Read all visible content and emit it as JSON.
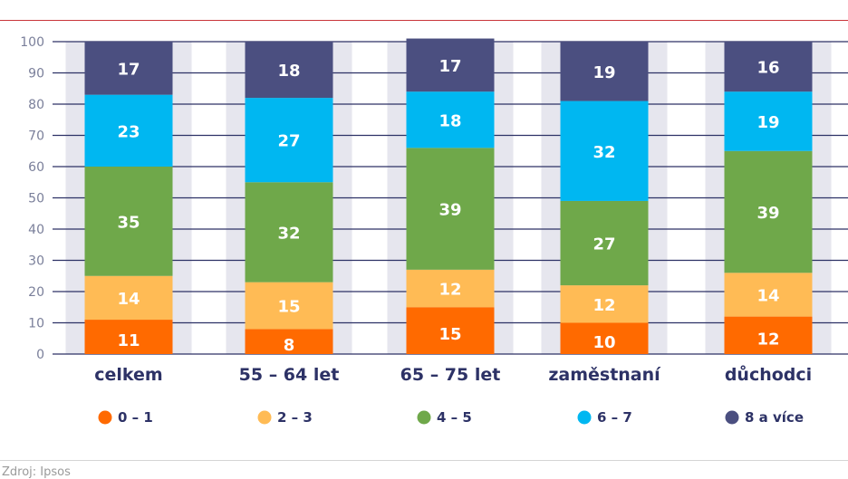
{
  "source": "Zdroj: Ipsos",
  "chart_data": {
    "type": "bar",
    "stacked": true,
    "categories": [
      "celkem",
      "55 – 64 let",
      "65 – 75 let",
      "zaměstnaní",
      "důchodci"
    ],
    "yticks": [
      0,
      10,
      20,
      30,
      40,
      50,
      60,
      70,
      80,
      90,
      100
    ],
    "ylim": [
      0,
      100
    ],
    "legend_position": "bottom",
    "grid": true,
    "series": [
      {
        "name": "0 – 1",
        "color": "#ff6a00",
        "values": [
          11,
          8,
          15,
          10,
          12
        ]
      },
      {
        "name": "2 – 3",
        "color": "#ffbb55",
        "values": [
          14,
          15,
          12,
          12,
          14
        ]
      },
      {
        "name": "4 – 5",
        "color": "#6fa84a",
        "values": [
          35,
          32,
          39,
          27,
          39
        ]
      },
      {
        "name": "6 – 7",
        "color": "#00b7f1",
        "values": [
          23,
          27,
          18,
          32,
          19
        ]
      },
      {
        "name": "8 a více",
        "color": "#4b4f80",
        "values": [
          17,
          18,
          17,
          19,
          16
        ]
      }
    ]
  }
}
